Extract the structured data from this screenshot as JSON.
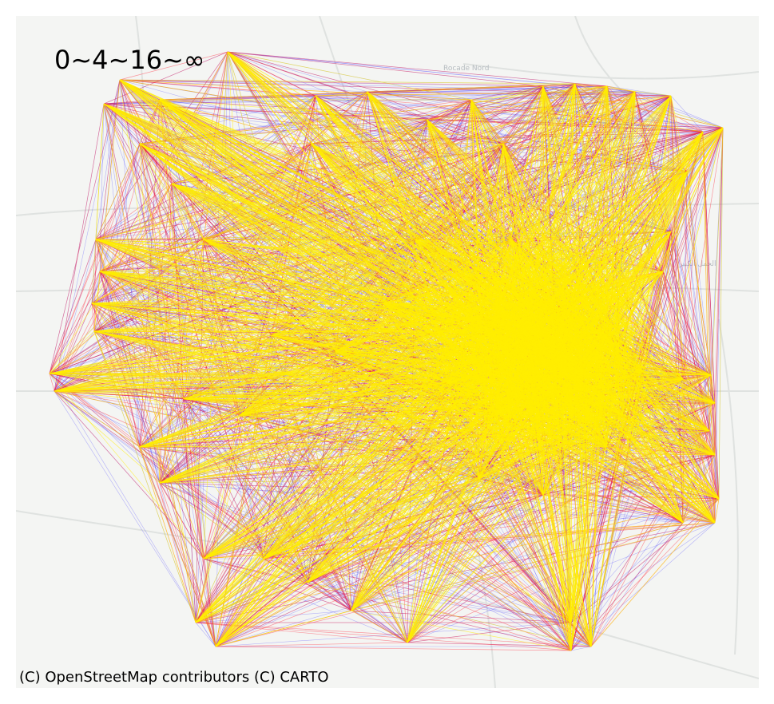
{
  "legend": {
    "label": "0~4~16~∞"
  },
  "attribution": "(C) OpenStreetMap contributors (C) CARTO",
  "basemap": {
    "labels": [
      "Rocade Nord",
      "الحمل الكبير"
    ]
  },
  "flows": {
    "class_colors": {
      "low": "#3b35ff",
      "mid": "#ff1f33",
      "high": "#ffee00"
    },
    "class_breaks": [
      0,
      4,
      16,
      "∞"
    ]
  }
}
